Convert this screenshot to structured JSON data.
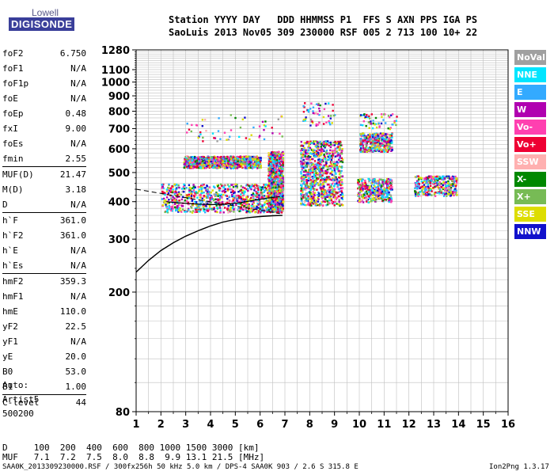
{
  "logo": {
    "top": "Lowell",
    "bottom": "DIGISONDE"
  },
  "header": {
    "row1": "Station YYYY DAY   DDD HHMMSS P1  FFS S AXN PPS IGA PS",
    "row2": "SaoLuis 2013 Nov05 309 230000 RSF 005 2 713 100 10+ 22"
  },
  "params": {
    "group1": [
      {
        "label": "foF2",
        "value": "6.750"
      },
      {
        "label": "foF1",
        "value": "N/A"
      },
      {
        "label": "foF1p",
        "value": "N/A"
      },
      {
        "label": "foE",
        "value": "N/A"
      },
      {
        "label": "foEp",
        "value": "0.48"
      },
      {
        "label": "fxI",
        "value": "9.00"
      },
      {
        "label": "foEs",
        "value": "N/A"
      },
      {
        "label": "fmin",
        "value": "2.55"
      }
    ],
    "group2": [
      {
        "label": "MUF(D)",
        "value": "21.47"
      },
      {
        "label": "M(D)",
        "value": "3.18"
      },
      {
        "label": "D",
        "value": "N/A"
      }
    ],
    "group3": [
      {
        "label": "h`F",
        "value": "361.0"
      },
      {
        "label": "h`F2",
        "value": "361.0"
      },
      {
        "label": "h`E",
        "value": "N/A"
      },
      {
        "label": "h`Es",
        "value": "N/A"
      }
    ],
    "group4": [
      {
        "label": "hmF2",
        "value": "359.3"
      },
      {
        "label": "hmF1",
        "value": "N/A"
      },
      {
        "label": "hmE",
        "value": "110.0"
      },
      {
        "label": "yF2",
        "value": "22.5"
      },
      {
        "label": "yF1",
        "value": "N/A"
      },
      {
        "label": "yE",
        "value": "20.0"
      },
      {
        "label": "B0",
        "value": "53.0"
      },
      {
        "label": "B1",
        "value": "1.00"
      }
    ],
    "group5": [
      {
        "label": "C-level",
        "value": "44"
      }
    ]
  },
  "auto": {
    "line1": "Auto:",
    "line2": "Artist5",
    "line3": "500200"
  },
  "legend": [
    {
      "label": "NoVal",
      "color": "#a0a0a0"
    },
    {
      "label": "NNE",
      "color": "#00e5ff"
    },
    {
      "label": "E",
      "color": "#33aaff"
    },
    {
      "label": "W",
      "color": "#b000b0"
    },
    {
      "label": "Vo-",
      "color": "#ff40b0"
    },
    {
      "label": "Vo+",
      "color": "#ee0033"
    },
    {
      "label": "SSW",
      "color": "#ffb0b0"
    },
    {
      "label": "X-",
      "color": "#008800"
    },
    {
      "label": "X+",
      "color": "#77bb55"
    },
    {
      "label": "SSE",
      "color": "#dddd00"
    },
    {
      "label": "NNW",
      "color": "#1111cc"
    }
  ],
  "muf_table": {
    "row_d": "D     100  200  400  600  800 1000 1500 3000 [km]",
    "row_muf": "MUF   7.1  7.2  7.5  8.0  8.8  9.9 13.1 21.5 [MHz]"
  },
  "footer": {
    "left": "SAA0K_2013309230000.RSF / 300fx256h 50 kHz 5.0 km / DPS-4 SAA0K 903 / 2.6 S 315.8 E",
    "right": "Ion2Png 1.3.17"
  },
  "chart_data": {
    "type": "scatter",
    "title": "",
    "xlabel": "",
    "ylabel": "",
    "xlim": [
      1,
      16
    ],
    "ylim": [
      80,
      1280
    ],
    "x_ticks": [
      1,
      2,
      3,
      4,
      5,
      6,
      7,
      8,
      9,
      10,
      11,
      12,
      13,
      14,
      15,
      16
    ],
    "y_ticks": [
      80,
      200,
      300,
      400,
      500,
      600,
      700,
      800,
      900,
      1000,
      1100,
      1280
    ],
    "y_scale": "log",
    "grid": true,
    "clusters": [
      {
        "x": [
          2.0,
          6.9
        ],
        "y": [
          370,
          460
        ],
        "density": "high"
      },
      {
        "x": [
          2.9,
          6.0
        ],
        "y": [
          520,
          570
        ],
        "density": "high"
      },
      {
        "x": [
          6.3,
          6.9
        ],
        "y": [
          370,
          590
        ],
        "density": "high"
      },
      {
        "x": [
          7.6,
          9.3
        ],
        "y": [
          390,
          640
        ],
        "density": "high"
      },
      {
        "x": [
          9.9,
          11.3
        ],
        "y": [
          400,
          480
        ],
        "density": "medium"
      },
      {
        "x": [
          10.0,
          11.3
        ],
        "y": [
          590,
          680
        ],
        "density": "medium"
      },
      {
        "x": [
          12.2,
          13.9
        ],
        "y": [
          420,
          490
        ],
        "density": "medium"
      },
      {
        "x": [
          3.0,
          6.9
        ],
        "y": [
          640,
          790
        ],
        "density": "sparse"
      },
      {
        "x": [
          7.7,
          9.0
        ],
        "y": [
          720,
          860
        ],
        "density": "sparse"
      },
      {
        "x": [
          10.0,
          11.5
        ],
        "y": [
          700,
          790
        ],
        "density": "sparse"
      }
    ],
    "profile_line": {
      "x": [
        1.0,
        1.5,
        2.0,
        2.5,
        3.0,
        3.5,
        4.0,
        4.5,
        5.0,
        5.5,
        6.0,
        6.5,
        6.9
      ],
      "y": [
        233,
        255,
        275,
        292,
        307,
        320,
        332,
        342,
        349,
        354,
        357,
        359,
        360
      ]
    },
    "trace_line": {
      "x": [
        2.2,
        2.8,
        3.4,
        4.0,
        4.6,
        5.2,
        5.8,
        6.3,
        6.8
      ],
      "y": [
        400,
        396,
        393,
        391,
        392,
        397,
        405,
        411,
        416
      ]
    },
    "dashed_line": {
      "x": [
        1.0,
        6.8
      ],
      "y": [
        440,
        365
      ]
    }
  }
}
